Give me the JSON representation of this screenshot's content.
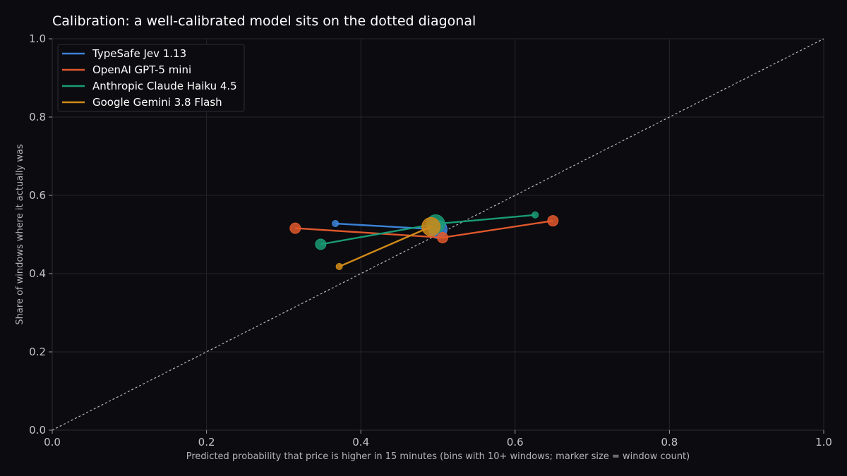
{
  "chart_data": {
    "type": "line",
    "title": "Calibration: a well-calibrated model sits on the dotted diagonal",
    "xlabel": "Predicted probability that price is higher in 15 minutes (bins with 10+ windows; marker size = window count)",
    "ylabel": "Share of windows where it actually was",
    "xlim": [
      0,
      1
    ],
    "ylim": [
      0,
      1
    ],
    "xticks": [
      "0.0",
      "0.2",
      "0.4",
      "0.6",
      "0.8",
      "1.0"
    ],
    "yticks": [
      "0.0",
      "0.2",
      "0.4",
      "0.6",
      "0.8",
      "1.0"
    ],
    "grid": true,
    "legend_position": "top-left",
    "reference_line": {
      "style": "dotted",
      "from": [
        0,
        0
      ],
      "to": [
        1,
        1
      ],
      "color": "#bbbbbb"
    },
    "series": [
      {
        "name": "TypeSafe Jev 1.13",
        "color": "#3b82d6",
        "points": [
          {
            "x": 0.367,
            "y": 0.528,
            "size": "small"
          },
          {
            "x": 0.5,
            "y": 0.513,
            "size": "large"
          }
        ]
      },
      {
        "name": "OpenAI GPT-5 mini",
        "color": "#e0582c",
        "points": [
          {
            "x": 0.315,
            "y": 0.516,
            "size": "medium"
          },
          {
            "x": 0.506,
            "y": 0.492,
            "size": "medium"
          },
          {
            "x": 0.649,
            "y": 0.535,
            "size": "medium"
          }
        ]
      },
      {
        "name": "Anthropic Claude Haiku 4.5",
        "color": "#1a9b74",
        "points": [
          {
            "x": 0.348,
            "y": 0.475,
            "size": "medium"
          },
          {
            "x": 0.497,
            "y": 0.527,
            "size": "large"
          },
          {
            "x": 0.626,
            "y": 0.55,
            "size": "small"
          }
        ]
      },
      {
        "name": "Google Gemini 3.8 Flash",
        "color": "#d08a18",
        "points": [
          {
            "x": 0.372,
            "y": 0.418,
            "size": "small"
          },
          {
            "x": 0.491,
            "y": 0.52,
            "size": "large"
          }
        ]
      }
    ]
  }
}
